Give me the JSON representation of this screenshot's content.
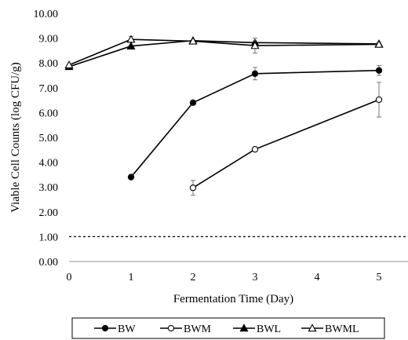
{
  "chart_data": {
    "type": "line",
    "title": "",
    "xlabel": "Fermentation Time (Day)",
    "ylabel": "Viable Cell Counts (log CFU/g)",
    "xlim": [
      0,
      5
    ],
    "ylim": [
      0,
      10
    ],
    "x_ticks": [
      "0",
      "1",
      "2",
      "3",
      "4",
      "5"
    ],
    "y_ticks": [
      "0.00",
      "1.00",
      "2.00",
      "3.00",
      "4.00",
      "5.00",
      "6.00",
      "7.00",
      "8.00",
      "9.00",
      "10.00"
    ],
    "grid": false,
    "legend_position": "bottom",
    "reference_line": {
      "y": 1.0,
      "style": "dashed"
    },
    "series": [
      {
        "name": "BW",
        "marker": "filled-circle",
        "points": [
          {
            "x": 1,
            "y": 3.4
          },
          {
            "x": 2,
            "y": 6.4
          },
          {
            "x": 3,
            "y": 7.57,
            "err": 0.25
          },
          {
            "x": 5,
            "y": 7.7,
            "err": 0.2
          }
        ]
      },
      {
        "name": "BWM",
        "marker": "open-circle",
        "points": [
          {
            "x": 2,
            "y": 2.97,
            "err": 0.3
          },
          {
            "x": 3,
            "y": 4.52
          },
          {
            "x": 5,
            "y": 6.52,
            "err": 0.7
          }
        ]
      },
      {
        "name": "BWL",
        "marker": "filled-triangle",
        "points": [
          {
            "x": 0,
            "y": 7.85
          },
          {
            "x": 1,
            "y": 8.68
          },
          {
            "x": 2,
            "y": 8.9
          },
          {
            "x": 3,
            "y": 8.82
          },
          {
            "x": 5,
            "y": 8.77
          }
        ]
      },
      {
        "name": "BWML",
        "marker": "open-triangle",
        "points": [
          {
            "x": 0,
            "y": 7.92
          },
          {
            "x": 1,
            "y": 8.95,
            "err": 0.12
          },
          {
            "x": 2,
            "y": 8.88
          },
          {
            "x": 3,
            "y": 8.7,
            "err": 0.3
          },
          {
            "x": 5,
            "y": 8.75,
            "err": 0.1
          }
        ]
      }
    ]
  }
}
